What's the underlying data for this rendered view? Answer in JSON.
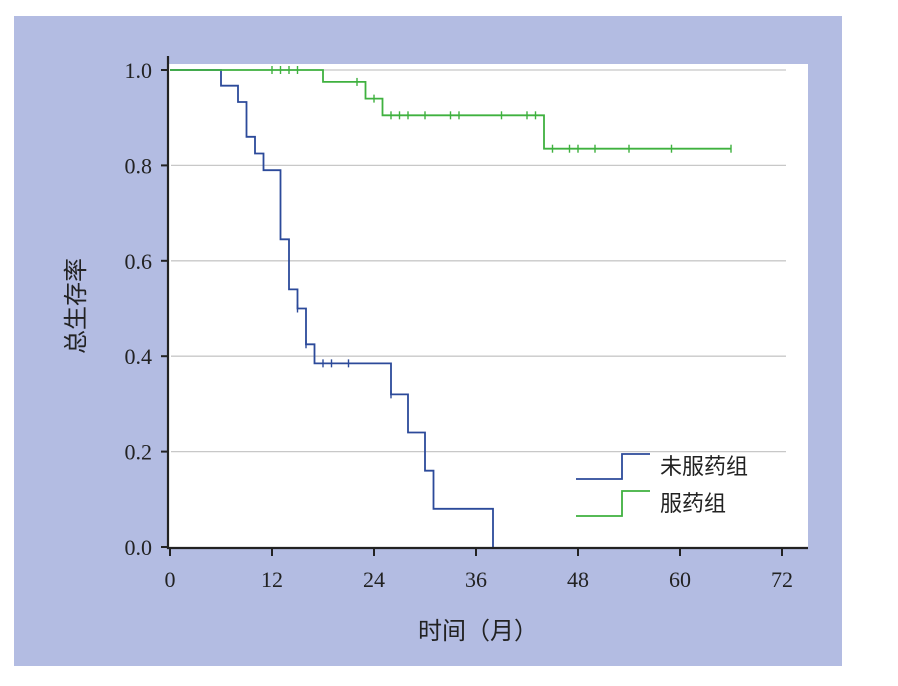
{
  "chart_data": {
    "type": "line",
    "subtype": "kaplan-meier step",
    "xlabel": "时间（月）",
    "ylabel": "总生存率",
    "xlim": [
      0,
      72
    ],
    "ylim": [
      0,
      1.0
    ],
    "xticks": [
      "0",
      "12",
      "24",
      "36",
      "48",
      "60",
      "72"
    ],
    "yticks": [
      "0.0",
      "0.2",
      "0.4",
      "0.6",
      "0.8",
      "1.0"
    ],
    "grid": "horizontal",
    "legend_position": "bottom-right",
    "background_color": "#b3bce2",
    "series": [
      {
        "name": "未服药组",
        "color": "#2c4a9a",
        "steps": [
          [
            0,
            1.0
          ],
          [
            6,
            1.0
          ],
          [
            6,
            0.967
          ],
          [
            8,
            0.967
          ],
          [
            8,
            0.933
          ],
          [
            9,
            0.933
          ],
          [
            9,
            0.86
          ],
          [
            10,
            0.86
          ],
          [
            10,
            0.825
          ],
          [
            11,
            0.825
          ],
          [
            11,
            0.79
          ],
          [
            13,
            0.79
          ],
          [
            13,
            0.645
          ],
          [
            14,
            0.645
          ],
          [
            14,
            0.54
          ],
          [
            15,
            0.54
          ],
          [
            15,
            0.5
          ],
          [
            16,
            0.5
          ],
          [
            16,
            0.425
          ],
          [
            17,
            0.425
          ],
          [
            17,
            0.385
          ],
          [
            26,
            0.385
          ],
          [
            26,
            0.32
          ],
          [
            28,
            0.32
          ],
          [
            28,
            0.24
          ],
          [
            30,
            0.24
          ],
          [
            30,
            0.16
          ],
          [
            31,
            0.16
          ],
          [
            31,
            0.08
          ],
          [
            38,
            0.08
          ],
          [
            38,
            0.0
          ]
        ],
        "censored": [
          [
            15,
            0.5
          ],
          [
            16,
            0.425
          ],
          [
            18,
            0.385
          ],
          [
            19,
            0.385
          ],
          [
            21,
            0.385
          ],
          [
            26,
            0.32
          ]
        ]
      },
      {
        "name": "服药组",
        "color": "#3fb13f",
        "steps": [
          [
            0,
            1.0
          ],
          [
            18,
            1.0
          ],
          [
            18,
            0.975
          ],
          [
            23,
            0.975
          ],
          [
            23,
            0.94
          ],
          [
            25,
            0.94
          ],
          [
            25,
            0.905
          ],
          [
            44,
            0.905
          ],
          [
            44,
            0.835
          ],
          [
            66,
            0.835
          ]
        ],
        "censored": [
          [
            12,
            1.0
          ],
          [
            13,
            1.0
          ],
          [
            14,
            1.0
          ],
          [
            15,
            1.0
          ],
          [
            22,
            0.975
          ],
          [
            24,
            0.94
          ],
          [
            26,
            0.905
          ],
          [
            27,
            0.905
          ],
          [
            28,
            0.905
          ],
          [
            30,
            0.905
          ],
          [
            33,
            0.905
          ],
          [
            34,
            0.905
          ],
          [
            39,
            0.905
          ],
          [
            42,
            0.905
          ],
          [
            43,
            0.905
          ],
          [
            45,
            0.835
          ],
          [
            47,
            0.835
          ],
          [
            48,
            0.835
          ],
          [
            50,
            0.835
          ],
          [
            54,
            0.835
          ],
          [
            59,
            0.835
          ],
          [
            66,
            0.835
          ]
        ]
      }
    ]
  }
}
